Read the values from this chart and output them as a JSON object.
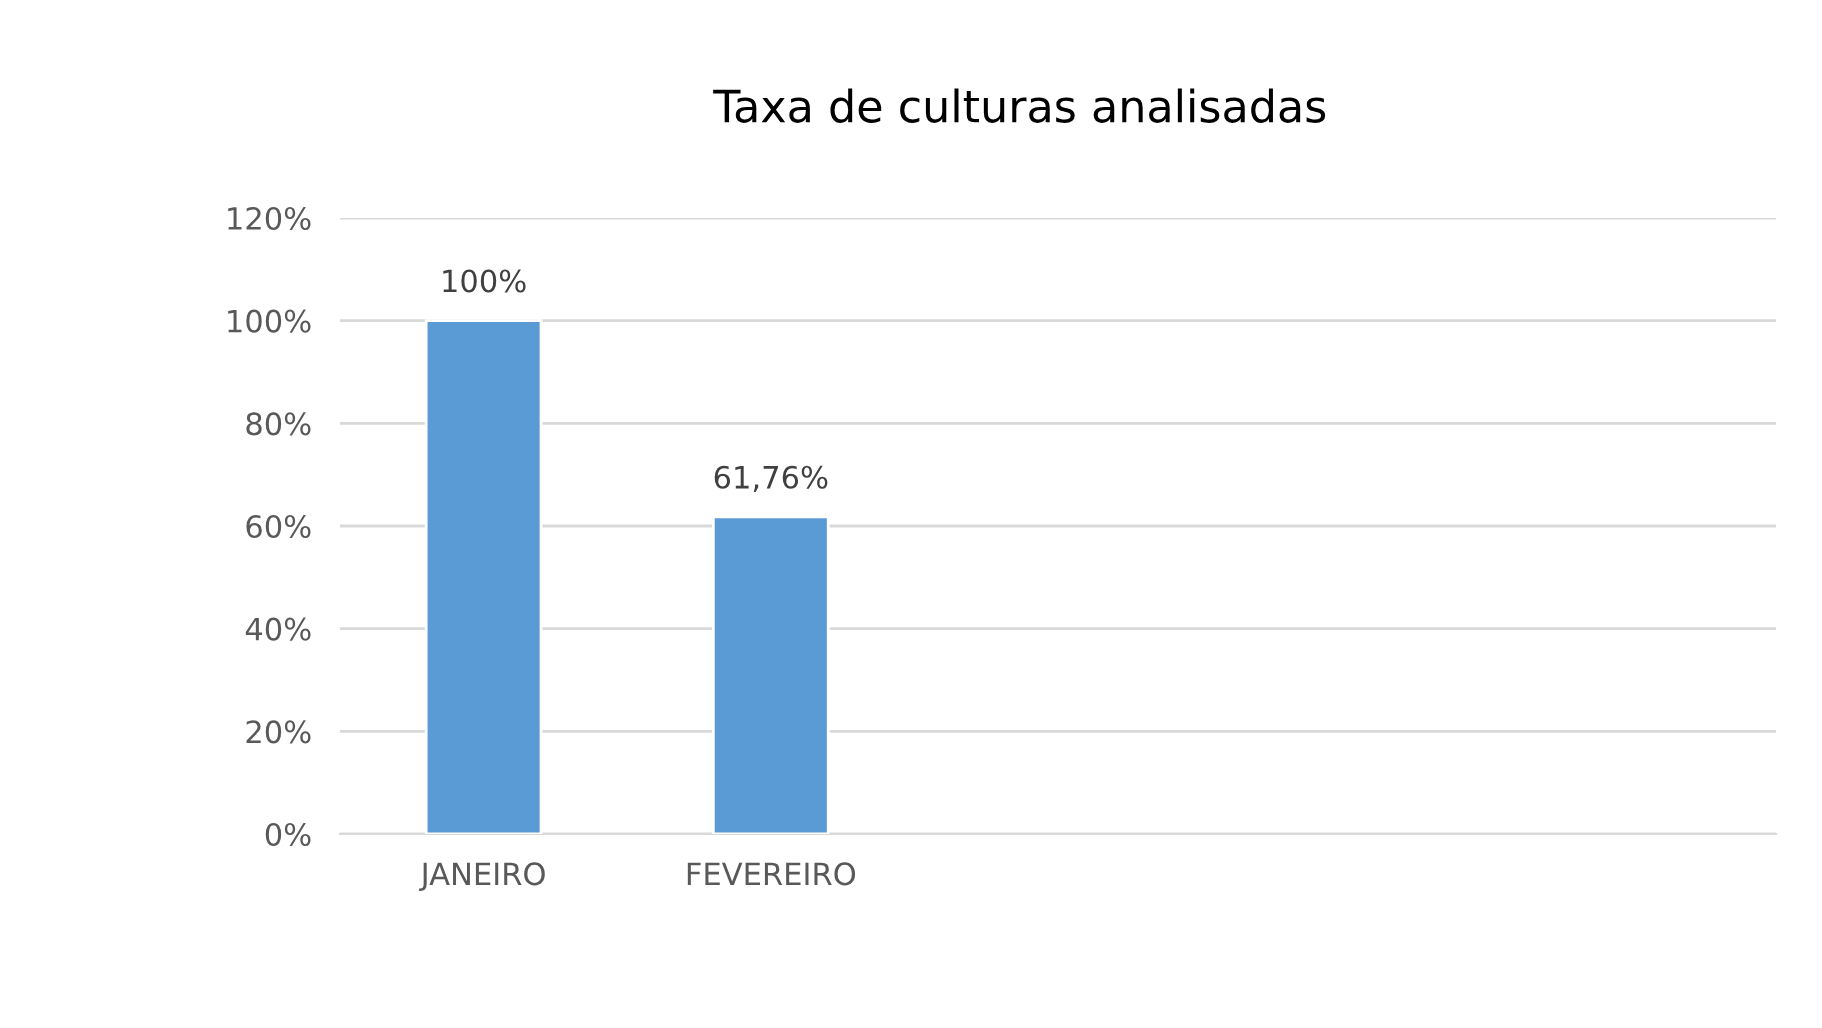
{
  "chart_data": {
    "type": "bar",
    "title": "Taxa de culturas analisadas",
    "categories": [
      "JANEIRO",
      "FEVEREIRO",
      null,
      null,
      null
    ],
    "values": [
      100,
      61.76,
      null,
      null,
      null
    ],
    "value_labels": [
      "100%",
      "61,76%",
      null,
      null,
      null
    ],
    "color": "#5b9bd5",
    "ylim": [
      0,
      120
    ],
    "yticks": [
      {
        "value": 0,
        "label": "0%"
      },
      {
        "value": 20,
        "label": "20%"
      },
      {
        "value": 40,
        "label": "40%"
      },
      {
        "value": 60,
        "label": "60%"
      },
      {
        "value": 80,
        "label": "80%"
      },
      {
        "value": 100,
        "label": "100%"
      },
      {
        "value": 120,
        "label": "120%"
      }
    ],
    "grid": "y",
    "legend": false
  }
}
